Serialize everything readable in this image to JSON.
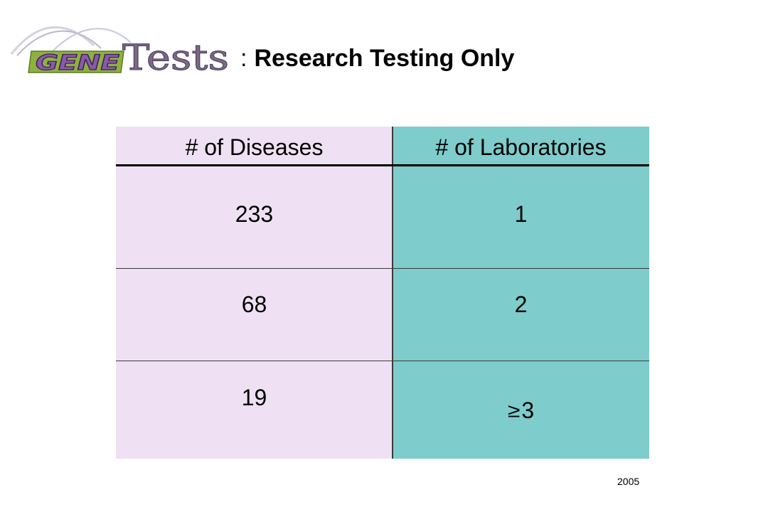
{
  "logo": {
    "part1": "GENE",
    "part2": "Tests",
    "colors": {
      "purple": "#8a5aa8",
      "purple_dark": "#4a2a6a",
      "green": "#8fb040",
      "wave": "#c9c9d9"
    }
  },
  "header": {
    "separator": ":",
    "title": "Research Testing Only"
  },
  "table": {
    "columns": [
      "# of Diseases",
      "# of Laboratories"
    ],
    "rows": [
      {
        "diseases": "233",
        "labs": "1"
      },
      {
        "diseases": "68",
        "labs": "2"
      },
      {
        "diseases": "19",
        "labs_symbol": "≥",
        "labs": "3"
      }
    ],
    "colors": {
      "diseases_bg": "#efe1f3",
      "labs_bg": "#7ecccc"
    }
  },
  "footer": {
    "year": "2005"
  }
}
